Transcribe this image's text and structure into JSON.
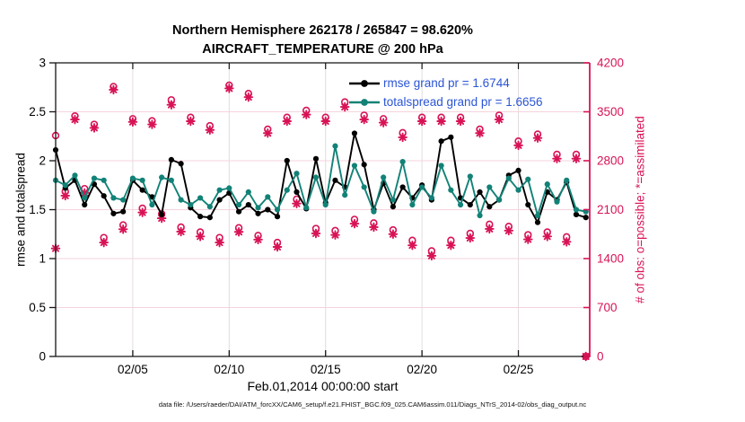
{
  "title": {
    "line1": "Northern Hemisphere 262178 / 265847 = 98.620%",
    "line2": "AIRCRAFT_TEMPERATURE @ 200 hPa"
  },
  "caption": "data file: /Users/raeder/DAI/ATM_forcXX/CAM6_setup/f.e21.FHIST_BGC.f09_025.CAM6assim.011/Diags_NTrS_2014-02/obs_diag_output.nc",
  "colors": {
    "rmse": "#000000",
    "totalspread": "#128277",
    "obs": "#d81356",
    "legend_text": "#2b55d6",
    "grid_h": "#f6d3dc",
    "grid_v": "#e3dcdc",
    "axis_black": "#141414"
  },
  "chart_data": {
    "type": "line+scatter",
    "title": "Northern Hemisphere 262178 / 265847 = 98.620% | AIRCRAFT_TEMPERATURE @ 200 hPa",
    "xlabel": "Feb.01,2014 00:00:00 start",
    "x_units": "day of Feb 2014, 12-hourly bins",
    "x_range": [
      1.0,
      28.7
    ],
    "xticks": [
      {
        "day": 5,
        "label": "02/05"
      },
      {
        "day": 10,
        "label": "02/10"
      },
      {
        "day": 15,
        "label": "02/15"
      },
      {
        "day": 20,
        "label": "02/20"
      },
      {
        "day": 25,
        "label": "02/25"
      }
    ],
    "left_axis": {
      "label": "rmse and totalspread",
      "range": [
        0,
        3
      ],
      "ticks": [
        0,
        0.5,
        1,
        1.5,
        2,
        2.5,
        3
      ],
      "tick_labels": [
        "0",
        "0.5",
        "1",
        "1.5",
        "2",
        "2.5",
        "3"
      ]
    },
    "right_axis": {
      "label": "# of obs: o=possible; *=assimilated",
      "range": [
        0,
        4200
      ],
      "ticks": [
        0,
        700,
        1400,
        2100,
        2800,
        3500,
        4200
      ],
      "tick_labels": [
        "0",
        "700",
        "1400",
        "2100",
        "2800",
        "3500",
        "4200"
      ]
    },
    "legend": [
      {
        "series": "rmse",
        "label": "rmse grand pr = 1.6744"
      },
      {
        "series": "totalspread",
        "label": "totalspread grand pr = 1.6656"
      }
    ],
    "grid": true,
    "days": [
      1.0,
      1.5,
      2.0,
      2.5,
      3.0,
      3.5,
      4.0,
      4.5,
      5.0,
      5.5,
      6.0,
      6.5,
      7.0,
      7.5,
      8.0,
      8.5,
      9.0,
      9.5,
      10.0,
      10.5,
      11.0,
      11.5,
      12.0,
      12.5,
      13.0,
      13.5,
      14.0,
      14.5,
      15.0,
      15.5,
      16.0,
      16.5,
      17.0,
      17.5,
      18.0,
      18.5,
      19.0,
      19.5,
      20.0,
      20.5,
      21.0,
      21.5,
      22.0,
      22.5,
      23.0,
      23.5,
      24.0,
      24.5,
      25.0,
      25.5,
      26.0,
      26.5,
      27.0,
      27.5,
      28.0,
      28.5
    ],
    "series": [
      {
        "name": "rmse",
        "axis": "left",
        "style": "line+dot",
        "values": [
          2.11,
          1.72,
          1.8,
          1.55,
          1.76,
          1.64,
          1.46,
          1.48,
          1.8,
          1.7,
          1.63,
          1.45,
          2.01,
          1.97,
          1.52,
          1.43,
          1.42,
          1.6,
          1.67,
          1.48,
          1.55,
          1.46,
          1.5,
          1.43,
          2.0,
          1.68,
          1.51,
          2.02,
          1.57,
          1.8,
          1.73,
          2.28,
          1.96,
          1.5,
          1.77,
          1.53,
          1.73,
          1.62,
          1.75,
          1.6,
          2.2,
          2.24,
          1.62,
          1.55,
          1.68,
          1.53,
          1.6,
          1.85,
          1.9,
          1.55,
          1.37,
          1.68,
          1.6,
          1.78,
          1.45,
          1.42
        ]
      },
      {
        "name": "totalspread",
        "axis": "left",
        "style": "line+dot",
        "values": [
          1.8,
          1.75,
          1.85,
          1.62,
          1.82,
          1.8,
          1.62,
          1.6,
          1.82,
          1.8,
          1.55,
          1.83,
          1.8,
          1.6,
          1.55,
          1.62,
          1.53,
          1.7,
          1.72,
          1.55,
          1.68,
          1.52,
          1.63,
          1.5,
          1.7,
          1.87,
          1.52,
          1.83,
          1.55,
          2.15,
          1.65,
          1.95,
          1.73,
          1.48,
          1.83,
          1.6,
          1.99,
          1.55,
          1.73,
          1.62,
          1.95,
          1.7,
          1.55,
          1.84,
          1.44,
          1.73,
          1.6,
          1.82,
          1.7,
          1.81,
          1.44,
          1.76,
          1.58,
          1.8,
          1.5,
          1.48
        ]
      },
      {
        "name": "obs_possible",
        "axis": "right",
        "style": "open-circle",
        "values": [
          3160,
          2360,
          3440,
          2400,
          3320,
          1700,
          3860,
          1880,
          3400,
          2120,
          3370,
          2040,
          3670,
          1850,
          3420,
          1780,
          3300,
          1700,
          3880,
          1840,
          3760,
          1730,
          3250,
          1630,
          3420,
          2250,
          3520,
          1830,
          3420,
          1800,
          3640,
          1960,
          3450,
          1910,
          3400,
          1810,
          3200,
          1660,
          3420,
          1510,
          3420,
          1660,
          3420,
          1760,
          3250,
          1890,
          3450,
          1860,
          3080,
          1740,
          3180,
          1780,
          2890,
          1710,
          2890,
          0
        ]
      },
      {
        "name": "obs_assimilated",
        "axis": "right",
        "style": "asterisk",
        "values": [
          1545,
          2300,
          3390,
          2340,
          3270,
          1630,
          3815,
          1820,
          3355,
          2060,
          3320,
          1977,
          3600,
          1786,
          3365,
          1717,
          3240,
          1630,
          3835,
          1782,
          3710,
          1672,
          3195,
          1567,
          3365,
          2187,
          3460,
          1760,
          3365,
          1738,
          3570,
          1900,
          3390,
          1850,
          3345,
          1750,
          3135,
          1590,
          3365,
          1440,
          3365,
          1590,
          3365,
          1695,
          3195,
          1825,
          3390,
          1800,
          3020,
          1675,
          3125,
          1717,
          2830,
          1640,
          2830,
          0
        ]
      }
    ]
  }
}
